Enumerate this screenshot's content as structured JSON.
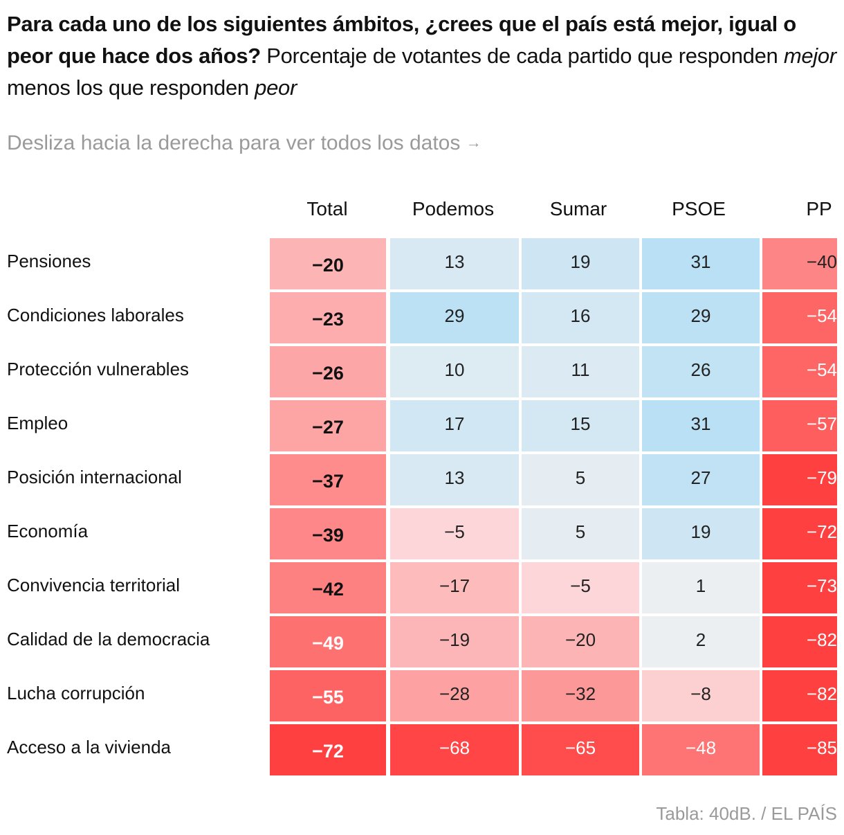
{
  "title": {
    "bold": "Para cada uno de los siguientes ámbitos, ¿crees que el país está mejor, igual o peor que hace dos años?",
    "text_1": " Porcentaje de votantes de cada partido que responden ",
    "em_1": "mejor",
    "text_2": " menos los que responden ",
    "em_2": "peor"
  },
  "hint": {
    "text": "Desliza hacia la derecha para ver todos los datos",
    "arrow": "→"
  },
  "source": "Tabla: 40dB. / EL PAÍS",
  "colors": {
    "negative_strong": "#ff4040",
    "positive_strong": "#b9e0f4",
    "neutral": "#eef0f2"
  },
  "chart_data": {
    "type": "table",
    "columns": [
      "Total",
      "Podemos",
      "Sumar",
      "PSOE",
      "PP"
    ],
    "rows": [
      {
        "label": "Pensiones",
        "values": [
          "−20",
          "13",
          "19",
          "31",
          "−40"
        ]
      },
      {
        "label": "Condiciones laborales",
        "values": [
          "−23",
          "29",
          "16",
          "29",
          "−54"
        ]
      },
      {
        "label": "Protección vulnerables",
        "values": [
          "−26",
          "10",
          "11",
          "26",
          "−54"
        ]
      },
      {
        "label": "Empleo",
        "values": [
          "−27",
          "17",
          "15",
          "31",
          "−57"
        ]
      },
      {
        "label": "Posición internacional",
        "values": [
          "−37",
          "13",
          "5",
          "27",
          "−79"
        ]
      },
      {
        "label": "Economía",
        "values": [
          "−39",
          "−5",
          "5",
          "19",
          "−72"
        ]
      },
      {
        "label": "Convivencia territorial",
        "values": [
          "−42",
          "−17",
          "−5",
          "1",
          "−73"
        ]
      },
      {
        "label": "Calidad de la democracia",
        "values": [
          "−49",
          "−19",
          "−20",
          "2",
          "−82"
        ]
      },
      {
        "label": "Lucha corrupción",
        "values": [
          "−55",
          "−28",
          "−32",
          "−8",
          "−82"
        ]
      },
      {
        "label": "Acceso a la vivienda",
        "values": [
          "−72",
          "−68",
          "−65",
          "−48",
          "−85"
        ]
      }
    ]
  }
}
